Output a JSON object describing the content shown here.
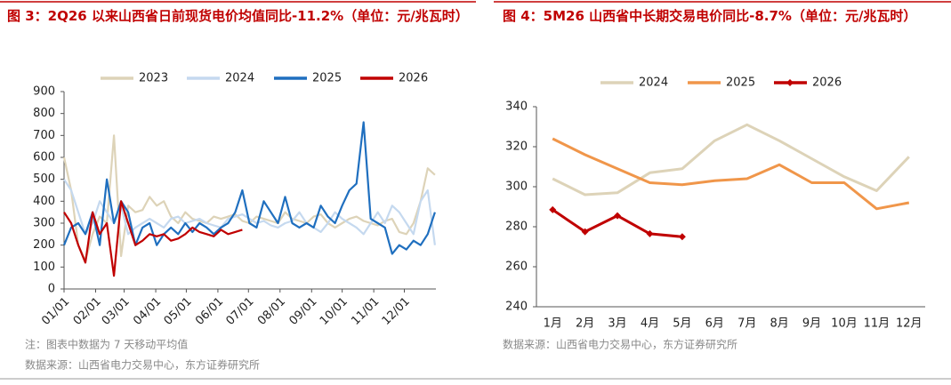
{
  "chart_data": [
    {
      "type": "line",
      "title": "图 3：2Q26 以来山西省日前现货电价均值同比-11.2%（单位：元/兆瓦时）",
      "notes": [
        "注：图表中数据为 7 天移动平均值",
        "数据来源：山西省电力交易中心，东方证券研究所"
      ],
      "x": [
        1,
        8,
        15,
        22,
        29,
        36,
        43,
        50,
        57,
        64,
        71,
        78,
        85,
        92,
        99,
        106,
        113,
        120,
        127,
        134,
        141,
        148,
        155,
        162,
        169,
        176,
        183,
        190,
        197,
        204,
        211,
        218,
        225,
        232,
        239,
        246,
        253,
        260,
        267,
        274,
        281,
        288,
        295,
        302,
        309,
        316,
        323,
        330,
        337,
        344,
        351,
        358,
        365
      ],
      "xlim": [
        1,
        366
      ],
      "xticks": [
        {
          "value": 1,
          "label": "01/01"
        },
        {
          "value": 32,
          "label": "02/01"
        },
        {
          "value": 60,
          "label": "03/01"
        },
        {
          "value": 91,
          "label": "04/01"
        },
        {
          "value": 121,
          "label": "05/01"
        },
        {
          "value": 152,
          "label": "06/01"
        },
        {
          "value": 182,
          "label": "07/01"
        },
        {
          "value": 213,
          "label": "08/01"
        },
        {
          "value": 244,
          "label": "09/01"
        },
        {
          "value": 274,
          "label": "10/01"
        },
        {
          "value": 305,
          "label": "11/01"
        },
        {
          "value": 335,
          "label": "12/01"
        }
      ],
      "ylim": [
        0,
        900
      ],
      "yticks": [
        0,
        100,
        200,
        300,
        400,
        500,
        600,
        700,
        800,
        900
      ],
      "series": [
        {
          "name": "2023",
          "color": "#ddd3b8",
          "values": [
            600,
            450,
            200,
            130,
            250,
            330,
            300,
            700,
            150,
            380,
            350,
            360,
            420,
            380,
            400,
            330,
            300,
            350,
            320,
            310,
            300,
            330,
            320,
            330,
            340,
            310,
            300,
            330,
            320,
            310,
            300,
            350,
            320,
            310,
            300,
            330,
            340,
            300,
            280,
            300,
            320,
            330,
            310,
            300,
            290,
            310,
            320,
            260,
            250,
            300,
            400,
            550,
            520
          ]
        },
        {
          "name": "2024",
          "color": "#c5d9ef",
          "values": [
            500,
            450,
            350,
            250,
            300,
            400,
            350,
            300,
            380,
            250,
            280,
            300,
            320,
            300,
            280,
            320,
            330,
            300,
            310,
            320,
            300,
            290,
            280,
            320,
            330,
            340,
            320,
            300,
            310,
            290,
            280,
            300,
            310,
            350,
            300,
            280,
            260,
            300,
            350,
            320,
            300,
            280,
            250,
            300,
            350,
            300,
            380,
            350,
            300,
            250,
            400,
            450,
            200
          ]
        },
        {
          "name": "2025",
          "color": "#1f6fbf",
          "values": [
            200,
            280,
            300,
            250,
            350,
            200,
            500,
            300,
            400,
            350,
            200,
            280,
            300,
            200,
            250,
            280,
            250,
            300,
            260,
            300,
            280,
            250,
            280,
            300,
            350,
            450,
            300,
            280,
            400,
            350,
            300,
            420,
            300,
            280,
            300,
            280,
            380,
            330,
            300,
            380,
            450,
            480,
            760,
            320,
            300,
            280,
            160,
            200,
            180,
            220,
            200,
            250,
            350
          ]
        },
        {
          "name": "2026",
          "color": "#c00000",
          "values": [
            350,
            300,
            200,
            120,
            350,
            250,
            300,
            60,
            400,
            300,
            200,
            220,
            250,
            240,
            250,
            220,
            230,
            250,
            280,
            260,
            250,
            240,
            270,
            250,
            260,
            270,
            null,
            null,
            null,
            null,
            null,
            null,
            null,
            null,
            null,
            null,
            null,
            null,
            null,
            null,
            null,
            null,
            null,
            null,
            null,
            null,
            null,
            null,
            null,
            null,
            null,
            null,
            null
          ]
        }
      ]
    },
    {
      "type": "line",
      "title": "图 4：5M26 山西省中长期交易电价同比-8.7%（单位：元/兆瓦时）",
      "notes": [
        "数据来源：山西省电力交易中心，东方证券研究所"
      ],
      "categories": [
        "1月",
        "2月",
        "3月",
        "4月",
        "5月",
        "6月",
        "7月",
        "8月",
        "9月",
        "10月",
        "11月",
        "12月"
      ],
      "ylim": [
        240,
        340
      ],
      "yticks": [
        240,
        260,
        280,
        300,
        320,
        340
      ],
      "series": [
        {
          "name": "2024",
          "color": "#ddd3b8",
          "values": [
            304,
            296,
            297,
            307,
            309,
            323,
            331,
            323,
            314,
            305,
            298,
            315
          ]
        },
        {
          "name": "2025",
          "color": "#f0964a",
          "values": [
            324,
            316,
            309,
            302,
            301,
            303,
            304,
            311,
            302,
            302,
            289,
            292
          ]
        },
        {
          "name": "2026",
          "color": "#c00000",
          "markers": true,
          "values": [
            288.5,
            277.5,
            285.5,
            276.5,
            275,
            null,
            null,
            null,
            null,
            null,
            null,
            null
          ]
        }
      ]
    }
  ]
}
